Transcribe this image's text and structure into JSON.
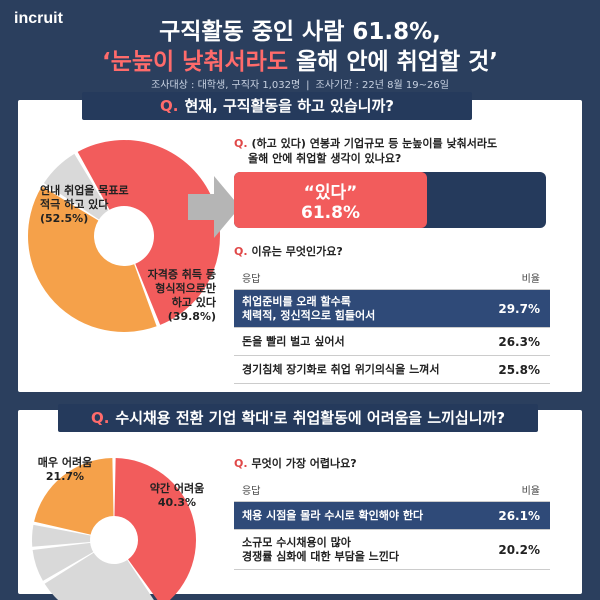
{
  "brand": "incruit",
  "headline": {
    "line1": "구직활동 중인 사람 61.8%,",
    "line2_highlight": "‘눈높이 낮춰서라도",
    "line2_rest": " 올해 안에 취업할 것’"
  },
  "survey": {
    "target": "조사대상 : 대학생, 구직자 1,032명",
    "period": "조사기간 : 22년 8월 19~26일"
  },
  "q1": {
    "q": "Q.",
    "text": "현재, 구직활동을 하고 있습니까?"
  },
  "q1_sub": {
    "q": "Q.",
    "line1": "(하고 있다) 연봉과 기업규모 등 눈높이를 낮춰서라도",
    "line2": "올해 안에 취업할 생각이 있나요?"
  },
  "q1_reason": {
    "q": "Q.",
    "text": "이유는 무엇인가요?"
  },
  "q2": {
    "q": "Q.",
    "text": "수시채용 전환 기업 확대'로 취업활동에 어려움을 느끼십니까?"
  },
  "q2_sub": {
    "q": "Q.",
    "text": "무엇이 가장 어렵나요?"
  },
  "yes_bar": {
    "label": "“있다”",
    "value_text": "61.8%",
    "value": 61.8
  },
  "table_headers": {
    "item": "응답",
    "ratio": "비율"
  },
  "colors": {
    "navy": "#253a5c",
    "red": "#f25c5c",
    "orange": "#f5a14a",
    "gray": "#d9d9d9"
  },
  "chart_data": [
    {
      "type": "pie",
      "slices": [
        {
          "label_lines": [
            "연내 취업을 목표로",
            "적극 하고 있다",
            "(52.5%)"
          ],
          "value": 52.5,
          "color": "#f25c5c"
        },
        {
          "label_lines": [
            "자격증 취득 등",
            "형식적으로만",
            "하고 있다",
            "(39.8%)"
          ],
          "value": 39.8,
          "color": "#f5a14a"
        },
        {
          "label_lines": [],
          "value": 7.7,
          "color": "#d9d9d9"
        }
      ]
    },
    {
      "type": "table",
      "rows": [
        {
          "label_lines": [
            "취업준비를 오래 할수록",
            "체력적, 정신적으로 힘들어서"
          ],
          "value_text": "29.7%",
          "value": 29.7,
          "highlight": true
        },
        {
          "label_lines": [
            "돈을 빨리 벌고 싶어서"
          ],
          "value_text": "26.3%",
          "value": 26.3,
          "highlight": false
        },
        {
          "label_lines": [
            "경기침체 장기화로 취업 위기의식을 느껴서"
          ],
          "value_text": "25.8%",
          "value": 25.8,
          "highlight": false
        }
      ]
    },
    {
      "type": "pie",
      "slices": [
        {
          "label_lines": [
            "약간 어려움",
            "40.3%"
          ],
          "value": 40.3,
          "color": "#f25c5c"
        },
        {
          "label_lines": [],
          "value": 26.0,
          "color": "#d9d9d9"
        },
        {
          "label_lines": [],
          "value": 7.0,
          "color": "#d9d9d9"
        },
        {
          "label_lines": [],
          "value": 4.9,
          "color": "#d9d9d9"
        },
        {
          "label_lines": [
            "매우 어려움",
            "21.7%"
          ],
          "value": 21.7,
          "color": "#f5a14a"
        }
      ]
    },
    {
      "type": "table",
      "rows": [
        {
          "label_lines": [
            "채용 시점을 몰라 수시로 확인해야 한다"
          ],
          "value_text": "26.1%",
          "value": 26.1,
          "highlight": true
        },
        {
          "label_lines": [
            "소규모 수시채용이 많아",
            "경쟁률 심화에 대한 부담을 느낀다"
          ],
          "value_text": "20.2%",
          "value": 20.2,
          "highlight": false
        }
      ]
    }
  ]
}
